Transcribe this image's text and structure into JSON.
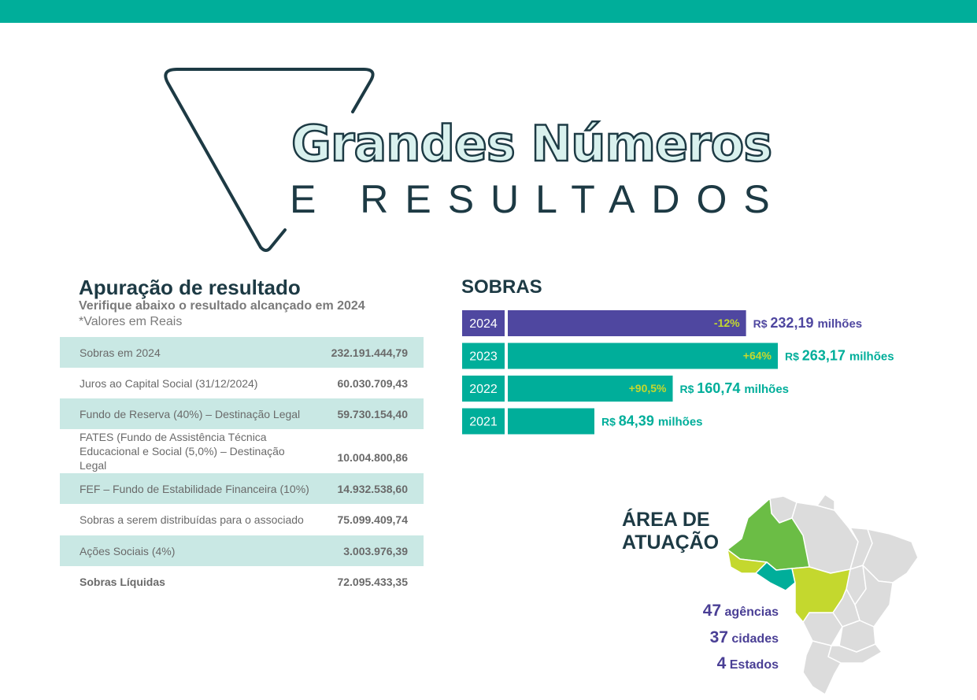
{
  "header": {
    "title_main": "Grandes Números",
    "title_sub": "E RESULTADOS",
    "accent_color": "#00ae9a",
    "dark_color": "#1d3a44"
  },
  "apuracao": {
    "title": "Apuração de resultado",
    "subtitle": "Verifique abaixo o resultado alcançado em 2024",
    "note": "*Valores em Reais",
    "rows": [
      {
        "label": "Sobras em 2024",
        "value": "232.191.444,79"
      },
      {
        "label": "Juros ao Capital Social (31/12/2024)",
        "value": "60.030.709,43"
      },
      {
        "label": "Fundo de Reserva (40%) – Destinação Legal",
        "value": "59.730.154,40"
      },
      {
        "label": "FATES (Fundo de Assistência Técnica Educacional e Social (5,0%) – Destinação Legal",
        "value": "10.004.800,86"
      },
      {
        "label": "FEF – Fundo de Estabilidade Financeira (10%)",
        "value": "14.932.538,60"
      },
      {
        "label": "Sobras a serem distribuídas para o associado",
        "value": "75.099.409,74"
      },
      {
        "label": "Ações Sociais (4%)",
        "value": "3.003.976,39"
      },
      {
        "label": "Sobras Líquidas",
        "value": "72.095.433,35"
      }
    ]
  },
  "chart_data": {
    "type": "bar",
    "orientation": "horizontal",
    "title": "SOBRAS",
    "categories": [
      "2024",
      "2023",
      "2022",
      "2021"
    ],
    "values": [
      232.19,
      263.17,
      160.74,
      84.39
    ],
    "unit": "milhões",
    "currency": "R$",
    "value_labels": [
      "232,19",
      "263,17",
      "160,74",
      "84,39"
    ],
    "change_labels": [
      "-12%",
      "+64%",
      "+90,5%",
      ""
    ],
    "colors": [
      "#4f47a0",
      "#00ae9a",
      "#00ae9a",
      "#00ae9a"
    ],
    "change_color": "#c4d82e"
  },
  "area": {
    "title_line1": "ÁREA DE",
    "title_line2": "ATUAÇÃO",
    "stats": [
      {
        "num": "47",
        "word": "agências"
      },
      {
        "num": "37",
        "word": "cidades"
      },
      {
        "num": "4",
        "word": "Estados"
      }
    ],
    "map_icon": "brazil-map-icon",
    "state_colors": {
      "amazonas": "#6bbd45",
      "acre": "#c4d82e",
      "rondonia": "#00ae9a",
      "mato_grosso": "#c4d82e",
      "other": "#dcdcdc"
    }
  }
}
